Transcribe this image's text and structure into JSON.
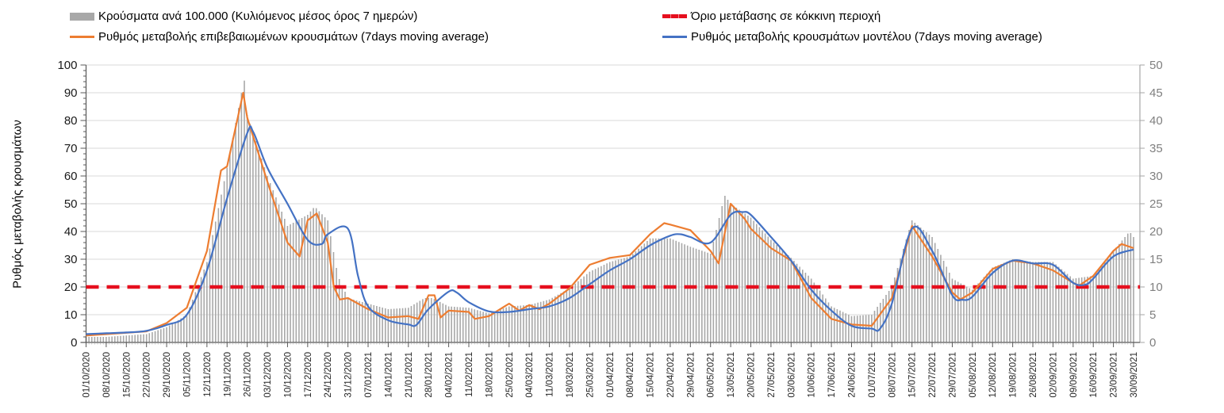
{
  "legend": {
    "bars_label": "Κρούσματα ανά 100.000 (Κυλιόμενος μέσος όρος 7 ημερών)",
    "orange_label": "Ρυθμός μεταβολής επιβεβαιωμένων κρουσμάτων (7days moving average)",
    "threshold_label": "Όριο μετάβασης σε κόκκινη περιοχή",
    "blue_label": "Ρυθμός μεταβολής κρουσμάτων μοντέλου (7days moving average)"
  },
  "colors": {
    "bars": "#a8a8a8",
    "orange": "#ED7D31",
    "blue": "#4472C4",
    "red": "#e60f1e",
    "grid": "#d9d9d9",
    "axis": "#595959",
    "right_text": "#7f7f7f",
    "left_text": "#1a1a1a",
    "date_text": "#262626"
  },
  "chart_data": {
    "type": "mixed",
    "left_axis": {
      "label": "Ρυθμός μεταβολής κρουσμάτων",
      "min": 0,
      "max": 100,
      "step": 10
    },
    "right_axis": {
      "min": 0,
      "max": 50,
      "step": 5
    },
    "threshold": {
      "label": "Όριο μετάβασης σε κόκκινη περιοχή",
      "value_left_axis": 20,
      "value_right_axis": 10
    },
    "x_tick_labels": [
      "01/10/2020",
      "08/10/2020",
      "15/10/2020",
      "22/10/2020",
      "29/10/2020",
      "05/11/2020",
      "12/11/2020",
      "19/11/2020",
      "26/11/2020",
      "03/12/2020",
      "10/12/2020",
      "17/12/2020",
      "24/12/2020",
      "31/12/2020",
      "07/01/2021",
      "14/01/2021",
      "21/01/2021",
      "28/01/2021",
      "04/02/2021",
      "11/02/2021",
      "18/02/2021",
      "25/02/2021",
      "04/03/2021",
      "11/03/2021",
      "18/03/2021",
      "25/03/2021",
      "01/04/2021",
      "08/04/2021",
      "15/04/2021",
      "22/04/2021",
      "29/04/2021",
      "06/05/2021",
      "13/05/2021",
      "20/05/2021",
      "27/05/2021",
      "03/06/2021",
      "10/06/2021",
      "17/06/2021",
      "24/06/2021",
      "01/07/2021",
      "08/07/2021",
      "15/07/2021",
      "22/07/2021",
      "29/07/2021",
      "05/08/2021",
      "12/08/2021",
      "19/08/2021",
      "26/08/2021",
      "02/09/2021",
      "09/09/2021",
      "16/09/2021",
      "23/09/2021",
      "30/09/2021"
    ],
    "series": [
      {
        "name": "Κρούσματα ανά 100.000 (Κυλιόμενος μέσος όρος 7 ημερών)",
        "type": "bar",
        "values_in": "left-axis units (week index, value)",
        "points": [
          [
            0,
            2
          ],
          [
            1,
            2
          ],
          [
            2,
            2.5
          ],
          [
            3,
            3
          ],
          [
            4,
            5.5
          ],
          [
            5,
            10
          ],
          [
            6,
            29
          ],
          [
            7,
            63
          ],
          [
            7.85,
            95
          ],
          [
            8,
            82
          ],
          [
            9,
            60
          ],
          [
            10,
            42
          ],
          [
            11,
            46
          ],
          [
            11.35,
            49
          ],
          [
            12,
            44
          ],
          [
            12.5,
            24
          ],
          [
            13,
            16
          ],
          [
            14,
            14
          ],
          [
            15,
            12
          ],
          [
            16,
            12.5
          ],
          [
            16.8,
            16
          ],
          [
            17.2,
            16
          ],
          [
            18,
            13
          ],
          [
            19,
            12.5
          ],
          [
            20,
            10.5
          ],
          [
            21,
            13
          ],
          [
            22,
            13.5
          ],
          [
            23,
            15.5
          ],
          [
            24,
            19.5
          ],
          [
            25,
            25.5
          ],
          [
            26,
            29
          ],
          [
            27,
            31
          ],
          [
            28,
            37.5
          ],
          [
            29,
            37.5
          ],
          [
            30,
            34.5
          ],
          [
            31,
            32
          ],
          [
            31.7,
            53
          ],
          [
            32,
            50
          ],
          [
            33,
            45
          ],
          [
            34,
            37
          ],
          [
            35,
            30.5
          ],
          [
            36,
            23
          ],
          [
            37,
            13
          ],
          [
            38,
            9.5
          ],
          [
            39,
            10
          ],
          [
            40,
            20
          ],
          [
            41,
            44
          ],
          [
            42,
            38
          ],
          [
            43,
            23
          ],
          [
            44,
            19
          ],
          [
            45,
            27
          ],
          [
            46,
            30
          ],
          [
            47,
            29
          ],
          [
            48,
            29
          ],
          [
            49,
            23
          ],
          [
            50,
            24
          ],
          [
            51,
            33
          ],
          [
            51.8,
            40
          ],
          [
            52,
            38
          ]
        ]
      },
      {
        "name": "Ρυθμός μεταβολής επιβεβαιωμένων κρουσμάτων (7days moving average)",
        "type": "line",
        "values_in": "left-axis units (week index, value)",
        "points": [
          [
            0,
            2.5
          ],
          [
            1,
            3
          ],
          [
            2,
            3.5
          ],
          [
            3,
            4
          ],
          [
            4,
            7
          ],
          [
            5,
            12.5
          ],
          [
            6,
            33
          ],
          [
            6.7,
            62
          ],
          [
            7,
            63.5
          ],
          [
            7.8,
            90
          ],
          [
            8,
            81
          ],
          [
            9,
            58
          ],
          [
            10,
            36
          ],
          [
            10.6,
            31
          ],
          [
            11,
            44
          ],
          [
            11.45,
            46.5
          ],
          [
            12,
            36
          ],
          [
            12.3,
            20
          ],
          [
            12.6,
            15.5
          ],
          [
            13,
            16
          ],
          [
            14,
            12
          ],
          [
            15,
            9
          ],
          [
            16,
            9.5
          ],
          [
            16.5,
            8.5
          ],
          [
            17,
            17
          ],
          [
            17.3,
            17
          ],
          [
            17.6,
            9
          ],
          [
            18,
            11.5
          ],
          [
            19,
            11
          ],
          [
            19.3,
            8.5
          ],
          [
            20,
            9.5
          ],
          [
            21,
            14
          ],
          [
            21.5,
            11.5
          ],
          [
            22,
            13.5
          ],
          [
            22.5,
            12
          ],
          [
            23,
            14
          ],
          [
            24,
            19.5
          ],
          [
            25,
            28
          ],
          [
            26,
            30.5
          ],
          [
            27,
            31.5
          ],
          [
            28,
            39
          ],
          [
            28.7,
            43
          ],
          [
            29,
            42.5
          ],
          [
            30,
            40.5
          ],
          [
            31,
            33
          ],
          [
            31.4,
            28.5
          ],
          [
            32,
            50
          ],
          [
            32.7,
            44.5
          ],
          [
            33,
            41
          ],
          [
            34,
            34
          ],
          [
            35,
            29.5
          ],
          [
            36,
            16
          ],
          [
            37,
            8.5
          ],
          [
            38,
            6.5
          ],
          [
            39,
            6
          ],
          [
            40,
            16
          ],
          [
            41,
            42
          ],
          [
            42,
            31
          ],
          [
            43,
            18
          ],
          [
            43.4,
            15.5
          ],
          [
            44,
            18
          ],
          [
            45,
            26.5
          ],
          [
            46,
            29.5
          ],
          [
            47,
            28.5
          ],
          [
            48,
            26
          ],
          [
            49,
            21.5
          ],
          [
            49.3,
            20.5
          ],
          [
            50,
            24
          ],
          [
            51,
            33
          ],
          [
            51.4,
            35.5
          ],
          [
            52,
            34
          ]
        ]
      },
      {
        "name": "Ρυθμός μεταβολής κρουσμάτων μοντέλου (7days moving average)",
        "type": "line-smooth",
        "values_in": "left-axis units (week index, value)",
        "points": [
          [
            0,
            3
          ],
          [
            1,
            3.3
          ],
          [
            2,
            3.6
          ],
          [
            3,
            4.2
          ],
          [
            4,
            6.3
          ],
          [
            5,
            10
          ],
          [
            6,
            26
          ],
          [
            7,
            52
          ],
          [
            8,
            75.5
          ],
          [
            8.3,
            75.8
          ],
          [
            9,
            63
          ],
          [
            10,
            50
          ],
          [
            11,
            37
          ],
          [
            11.7,
            35.5
          ],
          [
            12,
            39
          ],
          [
            13,
            41
          ],
          [
            13.5,
            24
          ],
          [
            14,
            13
          ],
          [
            15,
            8
          ],
          [
            16,
            6.5
          ],
          [
            16.4,
            6.3
          ],
          [
            17,
            12
          ],
          [
            18,
            18.3
          ],
          [
            18.4,
            18
          ],
          [
            19,
            14.5
          ],
          [
            20,
            11.2
          ],
          [
            21,
            11
          ],
          [
            22,
            12
          ],
          [
            23,
            13
          ],
          [
            24,
            16
          ],
          [
            25,
            21
          ],
          [
            26,
            26
          ],
          [
            27,
            30
          ],
          [
            28,
            35
          ],
          [
            29,
            38.5
          ],
          [
            29.5,
            39
          ],
          [
            30,
            38
          ],
          [
            31,
            36
          ],
          [
            32,
            46
          ],
          [
            32.6,
            47
          ],
          [
            33,
            46
          ],
          [
            34,
            38
          ],
          [
            35,
            29.5
          ],
          [
            36,
            19
          ],
          [
            37,
            11.5
          ],
          [
            38,
            6
          ],
          [
            39,
            5
          ],
          [
            39.4,
            4.8
          ],
          [
            40,
            14
          ],
          [
            41,
            41
          ],
          [
            42,
            33
          ],
          [
            43,
            17
          ],
          [
            43.5,
            15.4
          ],
          [
            44,
            16.5
          ],
          [
            45,
            25
          ],
          [
            46,
            29.5
          ],
          [
            47,
            28.5
          ],
          [
            48,
            28
          ],
          [
            49,
            21.5
          ],
          [
            49.6,
            20.8
          ],
          [
            50,
            23
          ],
          [
            51,
            31
          ],
          [
            52,
            33.5
          ]
        ]
      }
    ]
  }
}
